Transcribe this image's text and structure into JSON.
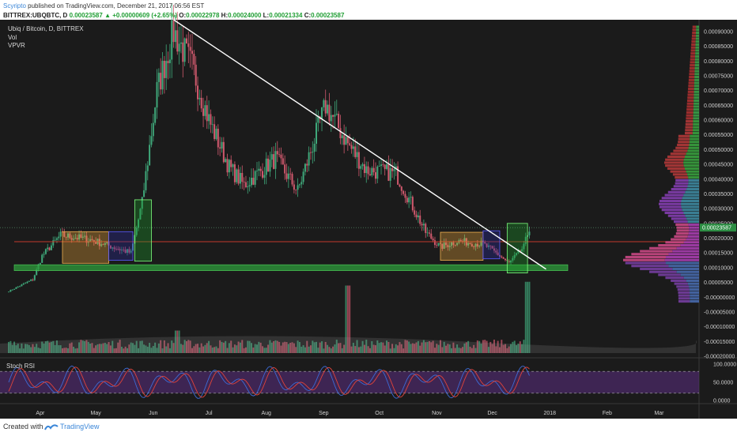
{
  "header": {
    "author": "Scyripto",
    "published_text": "published on TradingView.com, December 21, 2017 06:56 EST",
    "ticker_prefix": "BITTREX:UBQBTC, D",
    "last_price": "0.00023587",
    "change": "▲ +0.00000609 (+2.65%)",
    "o_label": "O:",
    "o_value": "0.00022978",
    "h_label": "H:",
    "h_value": "0.00024000",
    "l_label": "L:",
    "l_value": "0.00021334",
    "c_label": "C:",
    "c_value": "0.00023587"
  },
  "legend": {
    "title": "Ubiq / Bitcoin, D, BITTREX",
    "vol": "Vol",
    "vpvr": "VPVR",
    "stoch": "Stoch RSI"
  },
  "footer": {
    "created_with": "Created with",
    "brand": "TradingView"
  },
  "colors": {
    "background": "#1b1b1b",
    "up": "#3fa87a",
    "down": "#d0596d",
    "trendline": "#ffffff",
    "support_zone": "#2f9e3c",
    "resistance_line": "#c0392b",
    "consolidation_box": "#e8a23a",
    "blue_box": "#2a2a9e",
    "green_box": "#1e9a2a",
    "stoch_k": "#3c6bd6",
    "stoch_d": "#e0433a",
    "stoch_band": "#5b2d82",
    "price_label": "#2d8e44"
  },
  "chart_data": [
    {
      "type": "candlestick",
      "title": "Ubiq / Bitcoin, D, BITTREX",
      "x_ticks": [
        "Apr",
        "May",
        "Jun",
        "Jul",
        "Aug",
        "Sep",
        "Oct",
        "Nov",
        "Dec",
        "2018",
        "Feb",
        "Mar"
      ],
      "y_ticks": [
        "0.00090000",
        "0.00085000",
        "0.00080000",
        "0.00075000",
        "0.00070000",
        "0.00065000",
        "0.00060000",
        "0.00055000",
        "0.00050000",
        "0.00045000",
        "0.00040000",
        "0.00035000",
        "0.00030000",
        "0.00025000",
        "0.00020000",
        "0.00015000",
        "0.00010000",
        "0.00005000",
        "-0.00000000",
        "-0.00005000",
        "-0.00010000",
        "-0.00015000",
        "-0.00020000"
      ],
      "ylim": [
        -0.0002,
        0.00094
      ],
      "last_price_label": "0.00023587",
      "key_path": [
        {
          "date": "2017-03-15",
          "price": 2e-05
        },
        {
          "date": "2017-03-28",
          "price": 6e-05
        },
        {
          "date": "2017-04-02",
          "price": 0.00014
        },
        {
          "date": "2017-04-12",
          "price": 0.00021
        },
        {
          "date": "2017-04-28",
          "price": 0.000195
        },
        {
          "date": "2017-05-08",
          "price": 0.000175
        },
        {
          "date": "2017-05-20",
          "price": 0.00015
        },
        {
          "date": "2017-05-26",
          "price": 0.00032
        },
        {
          "date": "2017-06-03",
          "price": 0.0007
        },
        {
          "date": "2017-06-12",
          "price": 0.0009
        },
        {
          "date": "2017-06-22",
          "price": 0.00078
        },
        {
          "date": "2017-07-01",
          "price": 0.0006
        },
        {
          "date": "2017-07-12",
          "price": 0.00044
        },
        {
          "date": "2017-07-20",
          "price": 0.00038
        },
        {
          "date": "2017-08-06",
          "price": 0.00047
        },
        {
          "date": "2017-08-18",
          "price": 0.00036
        },
        {
          "date": "2017-09-02",
          "price": 0.00065
        },
        {
          "date": "2017-09-14",
          "price": 0.00052
        },
        {
          "date": "2017-09-24",
          "price": 0.00043
        },
        {
          "date": "2017-10-10",
          "price": 0.00042
        },
        {
          "date": "2017-10-26",
          "price": 0.00022
        },
        {
          "date": "2017-11-03",
          "price": 0.00017
        },
        {
          "date": "2017-11-12",
          "price": 0.00019
        },
        {
          "date": "2017-11-26",
          "price": 0.00018
        },
        {
          "date": "2017-12-03",
          "price": 0.00015
        },
        {
          "date": "2017-12-10",
          "price": 0.000115
        },
        {
          "date": "2017-12-18",
          "price": 0.00017
        },
        {
          "date": "2017-12-21",
          "price": 0.000236
        }
      ],
      "annotations": {
        "trendline": {
          "from": {
            "date": "2017-06-12",
            "price": 0.00094
          },
          "to": {
            "date": "2017-12-30",
            "price": 9.5e-05
          }
        },
        "support_zone": [
          9e-05,
          0.00011
        ],
        "resistance_line": 0.000188,
        "boxes": [
          {
            "kind": "consolidation",
            "from": "2017-04-13",
            "to": "2017-05-08",
            "top": 0.000222,
            "bottom": 0.000115
          },
          {
            "kind": "blue",
            "from": "2017-05-08",
            "to": "2017-05-21",
            "top": 0.000222,
            "bottom": 0.000125
          },
          {
            "kind": "green",
            "from": "2017-05-22",
            "to": "2017-05-31",
            "top": 0.00033,
            "bottom": 0.000122
          },
          {
            "kind": "consolidation",
            "from": "2017-11-03",
            "to": "2017-11-26",
            "top": 0.00022,
            "bottom": 0.000125
          },
          {
            "kind": "blue",
            "from": "2017-11-26",
            "to": "2017-12-05",
            "top": 0.000225,
            "bottom": 0.00013
          },
          {
            "kind": "green",
            "from": "2017-12-09",
            "to": "2017-12-20",
            "top": 0.00025,
            "bottom": 8.2e-05
          }
        ]
      }
    },
    {
      "type": "bar",
      "title": "Vol",
      "key_spikes": [
        {
          "date": "2017-06-14",
          "rel": 0.3
        },
        {
          "date": "2017-09-14",
          "rel": 0.9
        },
        {
          "date": "2017-12-20",
          "rel": 0.95
        }
      ]
    },
    {
      "type": "line",
      "title": "Stoch RSI",
      "y_ticks": [
        "100.0000",
        "50.0000",
        "0.0000"
      ],
      "ylim": [
        0,
        100
      ],
      "bands": [
        20,
        80
      ],
      "series": [
        {
          "color_key": "stoch_k"
        },
        {
          "color_key": "stoch_d"
        }
      ]
    },
    {
      "type": "horizontal_bar",
      "title": "VPVR",
      "price_range": [
        -2e-05,
        0.00092
      ]
    }
  ]
}
